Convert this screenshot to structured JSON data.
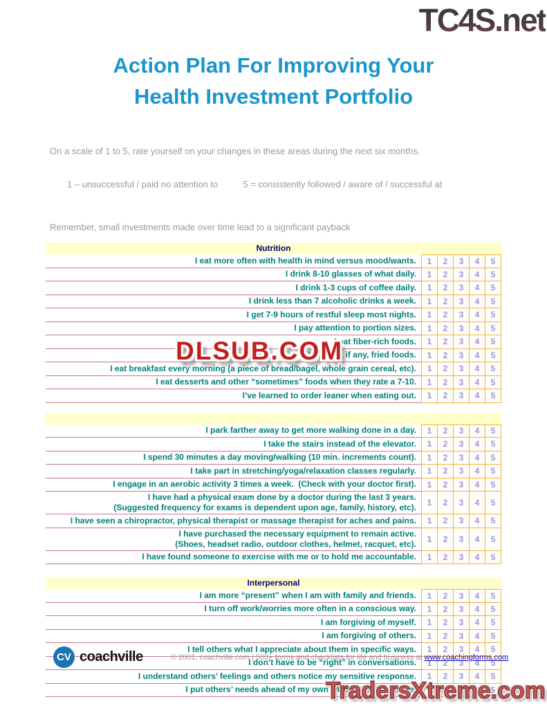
{
  "watermarks": {
    "top": "TC4S.net",
    "middle": "DLSUB.COM",
    "bottom": "TradersXtreme.com"
  },
  "header": {
    "title_line1": "Action Plan For Improving Your",
    "title_line2": "Health Investment Portfolio"
  },
  "intro": {
    "line1": "On a scale of 1 to 5, rate yourself on your changes in these areas during the next six months.",
    "scale_line": "1 – unsuccessful / paid no attention to          5 = consistently followed / aware of / successful at",
    "reminder": "Remember, small investments made over time lead to a significant payback"
  },
  "rating_scale": [
    "1",
    "2",
    "3",
    "4",
    "5"
  ],
  "sections": {
    "nutrition": {
      "title": "Nutrition",
      "rows": [
        "I eat more often with health in mind versus mood/wants.",
        "I drink 8-10 glasses of what daily.",
        "I drink 1-3 cups of coffee daily.",
        "I drink less than 7 alcoholic drinks a week.",
        "I get 7-9 hours of restful sleep most nights.",
        "I pay attention to portion sizes.",
        "I eat fiber-rich foods.",
        "I eat few, if any, fried foods.",
        "I eat breakfast every morning (a piece of bread/bagel, whole grain cereal, etc).",
        "I eat desserts and other “sometimes” foods when they rate a 7-10.",
        "I’ve learned to order leaner when eating out."
      ]
    },
    "physical_activity": {
      "title": "",
      "rows": [
        "I park farther away to get more walking done in a day.",
        "I take the stairs instead of the elevator.",
        "I spend 30 minutes a day moving/walking (10 min. increments count).",
        "I take part in stretching/yoga/relaxation classes regularly.",
        "I engage in an aerobic activity 3 times a week.  (Check with your doctor first).",
        "I have had a physical exam done by a doctor during the last 3 years.\n(Suggested frequency for exams is dependent upon age, family, history, etc).",
        "I have seen a chiropractor, physical therapist or massage therapist for aches and pains.",
        "I have purchased the necessary equipment to remain active.\n(Shoes, headset radio, outdoor clothes, helmet, racquet, etc).",
        "I have found someone to exercise with me or to hold me accountable."
      ]
    },
    "interpersonal": {
      "title": "Interpersonal",
      "rows": [
        "I am more “present” when I am with family and friends.",
        "I turn off work/worries more often in a conscious way.",
        "I am forgiving of myself.",
        "I am forgiving of others.",
        "I tell others what I appreciate about them in specific ways.",
        "I don’t have to be “right” in conversations.",
        "I understand others’ feelings and others notice my sensitive response.",
        "I put others’ needs ahead of my own when it’s appropriate."
      ]
    }
  },
  "footer": {
    "logo_initials": "CV",
    "logo_name": "coachville",
    "copyright_text": "© 2001, coachville.com | 500+ forms and checklists for life and business at ",
    "link_text": "www.coachingforms.com"
  },
  "colors": {
    "title_blue": "#1b95cb",
    "section_header_bg": "#ffffc9",
    "section_title_navy": "#00007d",
    "statement_teal": "#00807a",
    "rating_purple": "#9895db",
    "grid_border_orange": "#f5af3c",
    "row_line_pink": "#cc7396",
    "watermark_red": "#c41e1e",
    "logo_blue": "#1b75b5",
    "link_blue": "#0000cc"
  }
}
